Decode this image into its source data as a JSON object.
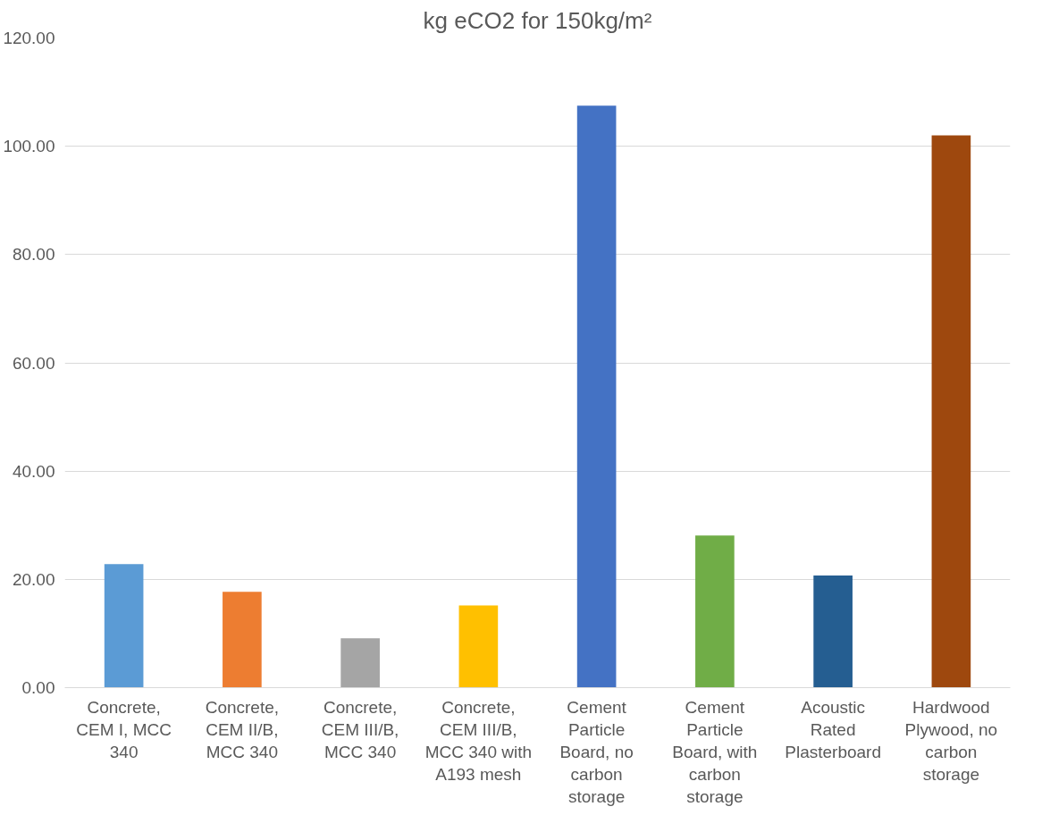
{
  "chart_data": {
    "type": "bar",
    "title": "kg eCO2 for 150kg/m²",
    "categories": [
      "Concrete, CEM I, MCC 340",
      "Concrete, CEM II/B, MCC 340",
      "Concrete, CEM III/B, MCC 340",
      "Concrete, CEM III/B, MCC 340 with A193 mesh",
      "Cement Particle Board, no carbon storage",
      "Cement Particle Board, with carbon storage",
      "Acoustic Rated Plasterboard",
      "Hardwood Plywood, no carbon storage"
    ],
    "values": [
      22.8,
      17.7,
      9.1,
      15.2,
      107.5,
      28.1,
      20.7,
      102.0
    ],
    "colors": [
      "#5b9bd5",
      "#ed7d31",
      "#a5a5a5",
      "#ffc000",
      "#4472c4",
      "#70ad47",
      "#255e91",
      "#9e480e"
    ],
    "ylim": [
      0,
      120
    ],
    "yticks": [
      {
        "value": 0,
        "label": "0.00"
      },
      {
        "value": 20,
        "label": "20.00"
      },
      {
        "value": 40,
        "label": "40.00"
      },
      {
        "value": 60,
        "label": "60.00"
      },
      {
        "value": 80,
        "label": "80.00"
      },
      {
        "value": 100,
        "label": "100.00"
      },
      {
        "value": 120,
        "label": "120.00"
      }
    ],
    "grid": "y"
  }
}
